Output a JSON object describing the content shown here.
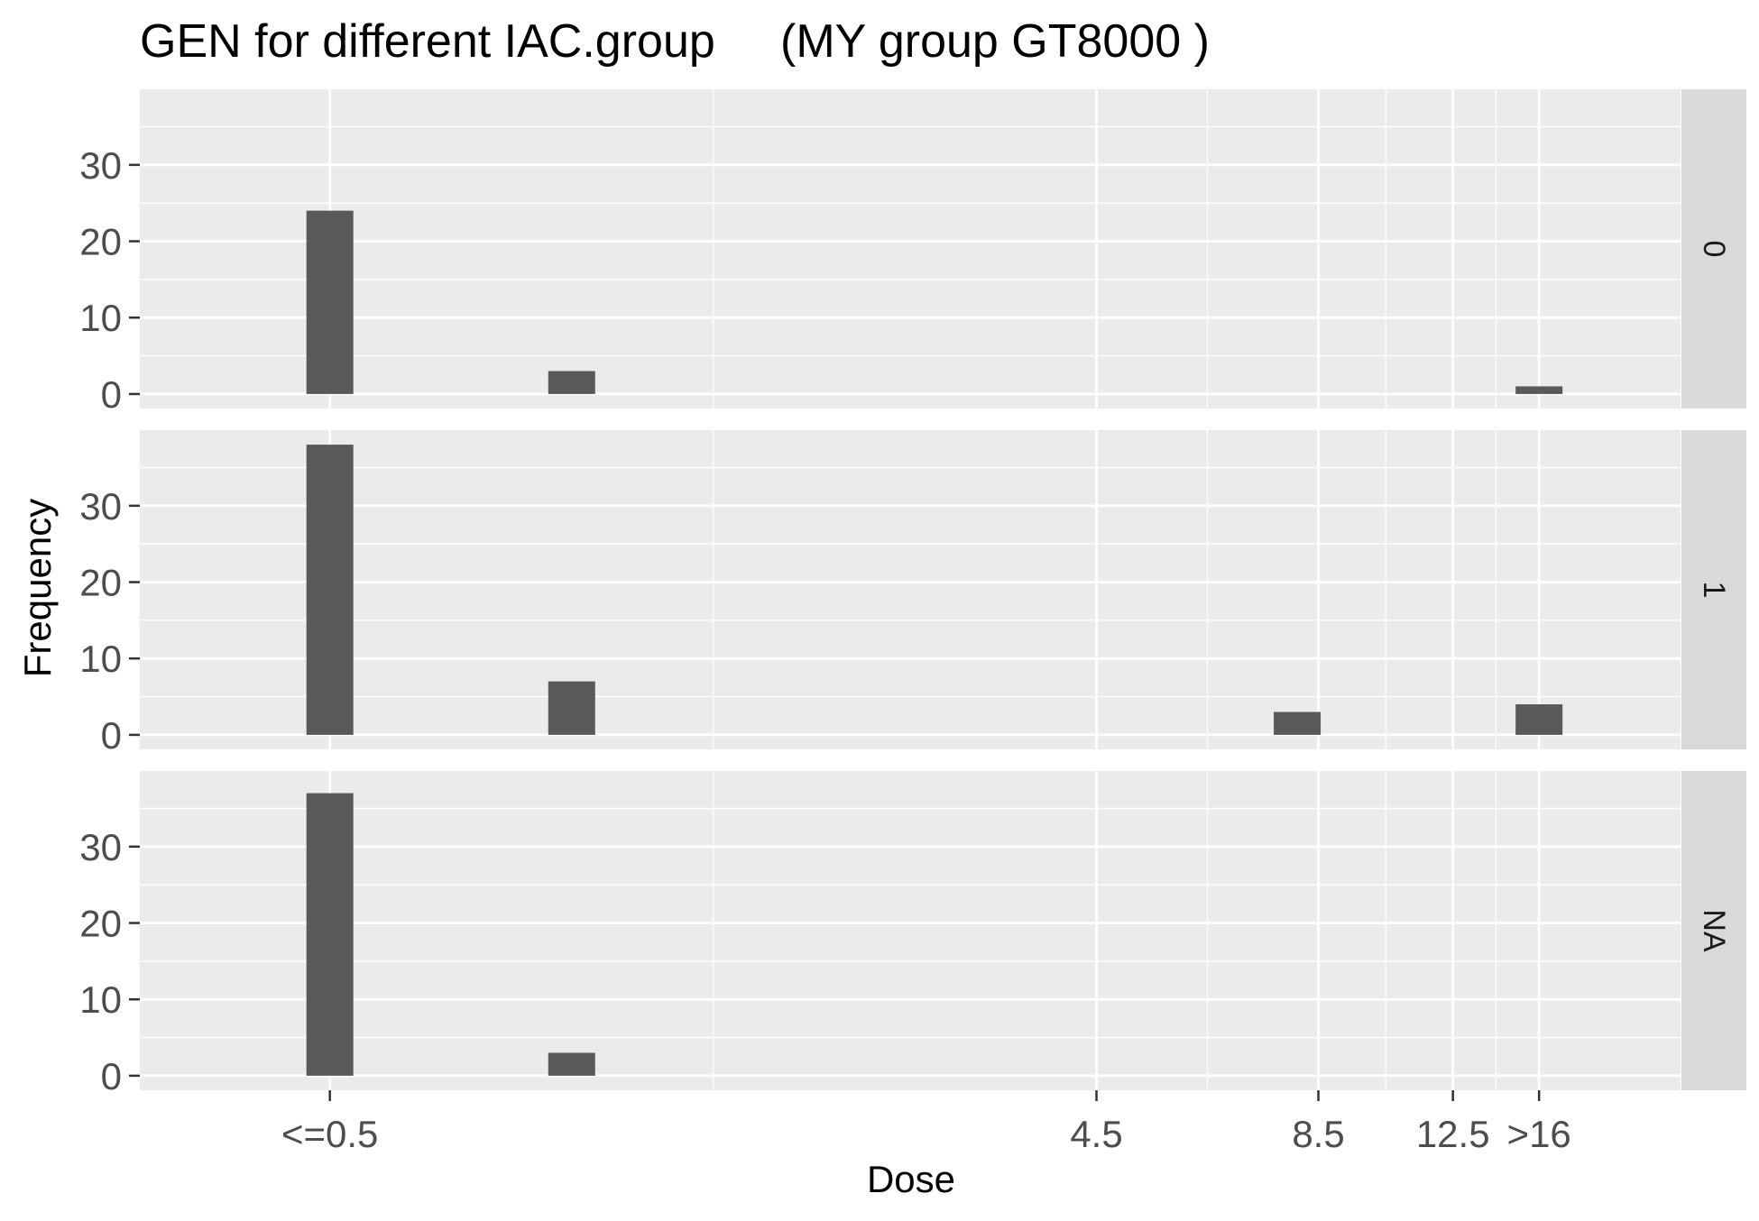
{
  "chart_data": {
    "type": "bar",
    "title": "GEN for different IAC.group     (MY group GT8000 )",
    "xlabel": "Dose",
    "ylabel": "Frequency",
    "x_tick_labels": [
      "<=0.5",
      "4.5",
      "8.5",
      "12.5",
      ">16"
    ],
    "x_scale": "log2",
    "x_range": [
      0.29,
      24
    ],
    "bar_positions": [
      0.5,
      1,
      8,
      16
    ],
    "y_ticks": [
      0,
      10,
      20,
      30
    ],
    "ylim": [
      -1.9,
      39.9
    ],
    "grid": true,
    "facets": [
      {
        "strip": "0",
        "values": [
          24,
          3,
          0,
          1
        ]
      },
      {
        "strip": "1",
        "values": [
          38,
          7,
          3,
          4
        ]
      },
      {
        "strip": "NA",
        "values": [
          37,
          3,
          0,
          0
        ]
      }
    ]
  },
  "colors": {
    "panel_background": "#ebebeb",
    "grid_major": "#ffffff",
    "bar_fill": "#595959",
    "strip_background": "#d9d9d9",
    "tick_text": "#4d4d4d"
  }
}
